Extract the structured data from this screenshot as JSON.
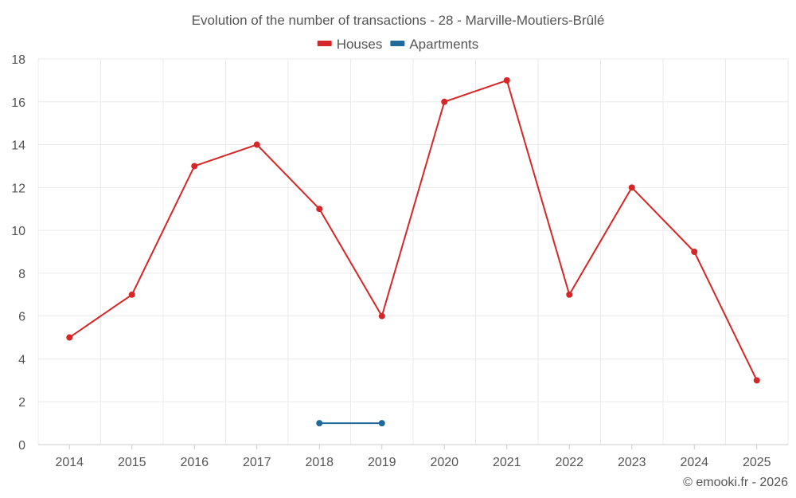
{
  "chart_data": {
    "type": "line",
    "title": "Evolution of the number of transactions - 28 - Marville-Moutiers-Brûlé",
    "categories": [
      "2014",
      "2015",
      "2016",
      "2017",
      "2018",
      "2019",
      "2020",
      "2021",
      "2022",
      "2023",
      "2024",
      "2025"
    ],
    "series": [
      {
        "name": "Houses",
        "color": "#d62728",
        "values": [
          5,
          7,
          13,
          14,
          11,
          6,
          16,
          17,
          7,
          12,
          9,
          3
        ]
      },
      {
        "name": "Apartments",
        "color": "#1f6a9a",
        "values": [
          null,
          null,
          null,
          null,
          1,
          1,
          null,
          null,
          null,
          null,
          null,
          null
        ]
      }
    ],
    "ylim": [
      0,
      18
    ],
    "yticks": [
      0,
      2,
      4,
      6,
      8,
      10,
      12,
      14,
      16,
      18
    ],
    "xlabel": "",
    "ylabel": "",
    "legend": "top-center",
    "grid": true
  },
  "credit": "© emooki.fr - 2026"
}
